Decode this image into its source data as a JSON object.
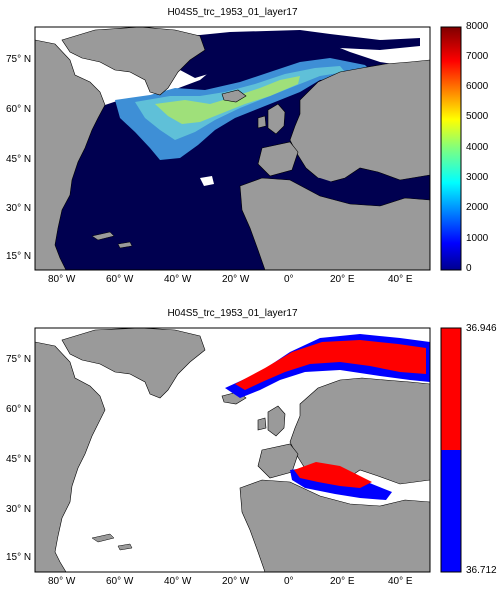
{
  "panels": [
    {
      "title": "H04S5_trc_1953_01_layer17",
      "colorbar_ticks": [
        "0",
        "1000",
        "2000",
        "3000",
        "4000",
        "5000",
        "6000",
        "7000",
        "8000"
      ],
      "colorbar_colormap": "jet",
      "colorbar_range": [
        0,
        8000
      ]
    },
    {
      "title": "H04S5_trc_1953_01_layer17",
      "colorbar_max": "36.946",
      "colorbar_min": "36.712",
      "colorbar_colors": [
        "#ff0000",
        "#0000ff"
      ]
    }
  ],
  "axes": {
    "lon_ticks": [
      "80° W",
      "60° W",
      "40° W",
      "20° W",
      "0°",
      "20° E",
      "40° E"
    ],
    "lat_ticks": [
      "75° N",
      "60° N",
      "45° N",
      "30° N",
      "15° N"
    ]
  },
  "colors": {
    "land": "#9a9a9a",
    "deep_ocean": "#000050",
    "mask": "#ffffff"
  }
}
